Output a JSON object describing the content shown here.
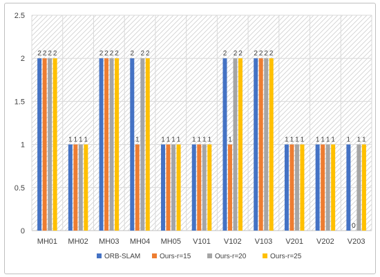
{
  "chart_data": {
    "type": "bar",
    "categories": [
      "MH01",
      "MH02",
      "MH03",
      "MH04",
      "MH05",
      "V101",
      "V102",
      "V103",
      "V201",
      "V202",
      "V203"
    ],
    "series": [
      {
        "name": "ORB-SLAM",
        "color": "#4472c4",
        "values": [
          2,
          1,
          2,
          2,
          1,
          1,
          2,
          2,
          1,
          1,
          1
        ]
      },
      {
        "name": "Ours-r=15",
        "color": "#ed7d31",
        "values": [
          2,
          1,
          2,
          1,
          1,
          1,
          1,
          2,
          1,
          1,
          0
        ]
      },
      {
        "name": "Ours-r=20",
        "color": "#a5a5a5",
        "values": [
          2,
          1,
          2,
          2,
          1,
          1,
          2,
          2,
          1,
          1,
          1
        ]
      },
      {
        "name": "Ours-r=25",
        "color": "#ffc000",
        "values": [
          2,
          1,
          2,
          2,
          1,
          1,
          2,
          2,
          1,
          1,
          1
        ]
      }
    ],
    "ylim": [
      0,
      2.5
    ],
    "yticks": [
      "0",
      "0.5",
      "1",
      "1.5",
      "2",
      "2.5"
    ],
    "grid": true,
    "data_labels": true,
    "legend_position": "bottom",
    "background": "diagonal-hatch"
  }
}
